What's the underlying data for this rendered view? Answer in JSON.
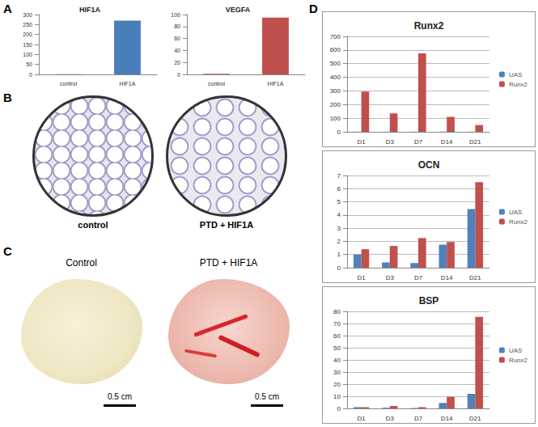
{
  "panel_labels": [
    "A",
    "B",
    "C",
    "D"
  ],
  "chart_data": [
    {
      "type": "bar",
      "title": "HIF1A",
      "categories": [
        "control",
        "HIF1A"
      ],
      "values": [
        1,
        270
      ],
      "color": "#4a7ebb",
      "ylim": [
        0,
        300
      ],
      "yticks": [
        0,
        50,
        100,
        150,
        200,
        250,
        300
      ],
      "grid": false
    },
    {
      "type": "bar",
      "title": "VEGFA",
      "categories": [
        "control",
        "HIF1A"
      ],
      "values": [
        1,
        95
      ],
      "color": "#c0504d",
      "ylim": [
        0,
        100
      ],
      "yticks": [
        0,
        20,
        40,
        60,
        80,
        100
      ],
      "grid": false
    },
    {
      "type": "bar",
      "title": "Runx2",
      "categories": [
        "D1",
        "D3",
        "D7",
        "D14",
        "D21"
      ],
      "series": [
        {
          "name": "UAS",
          "color": "#4f81bd",
          "values": [
            1,
            1,
            1,
            1,
            1
          ]
        },
        {
          "name": "Runx2",
          "color": "#c0504d",
          "values": [
            295,
            135,
            575,
            110,
            50
          ]
        }
      ],
      "ylim": [
        0,
        700
      ],
      "yticks": [
        0,
        100,
        200,
        300,
        400,
        500,
        600,
        700
      ],
      "grid": true,
      "legend": "right"
    },
    {
      "type": "bar",
      "title": "OCN",
      "categories": [
        "D1",
        "D3",
        "D7",
        "D14",
        "D21"
      ],
      "series": [
        {
          "name": "UAS",
          "color": "#4f81bd",
          "values": [
            1,
            0.4,
            0.35,
            1.75,
            4.45
          ]
        },
        {
          "name": "Runx2",
          "color": "#c0504d",
          "values": [
            1.4,
            1.65,
            2.25,
            1.95,
            6.5
          ]
        }
      ],
      "ylim": [
        0,
        7
      ],
      "yticks": [
        0,
        1,
        2,
        3,
        4,
        5,
        6,
        7
      ],
      "grid": true,
      "legend": "right"
    },
    {
      "type": "bar",
      "title": "BSP",
      "categories": [
        "D1",
        "D3",
        "D7",
        "D14",
        "D21"
      ],
      "series": [
        {
          "name": "UAS",
          "color": "#4f81bd",
          "values": [
            1,
            0.5,
            0.3,
            4.5,
            12
          ]
        },
        {
          "name": "Runx2",
          "color": "#c0504d",
          "values": [
            1,
            2,
            1,
            9.5,
            75.5
          ]
        }
      ],
      "ylim": [
        0,
        80
      ],
      "yticks": [
        0,
        10,
        20,
        30,
        40,
        50,
        60,
        70,
        80
      ],
      "grid": true,
      "legend": "right"
    }
  ],
  "images": {
    "B": {
      "labels": [
        "control",
        "PTD + HIF1A"
      ]
    },
    "C": {
      "labels": [
        "Control",
        "PTD + HIF1A"
      ],
      "scale_bar": "0.5 cm"
    }
  }
}
